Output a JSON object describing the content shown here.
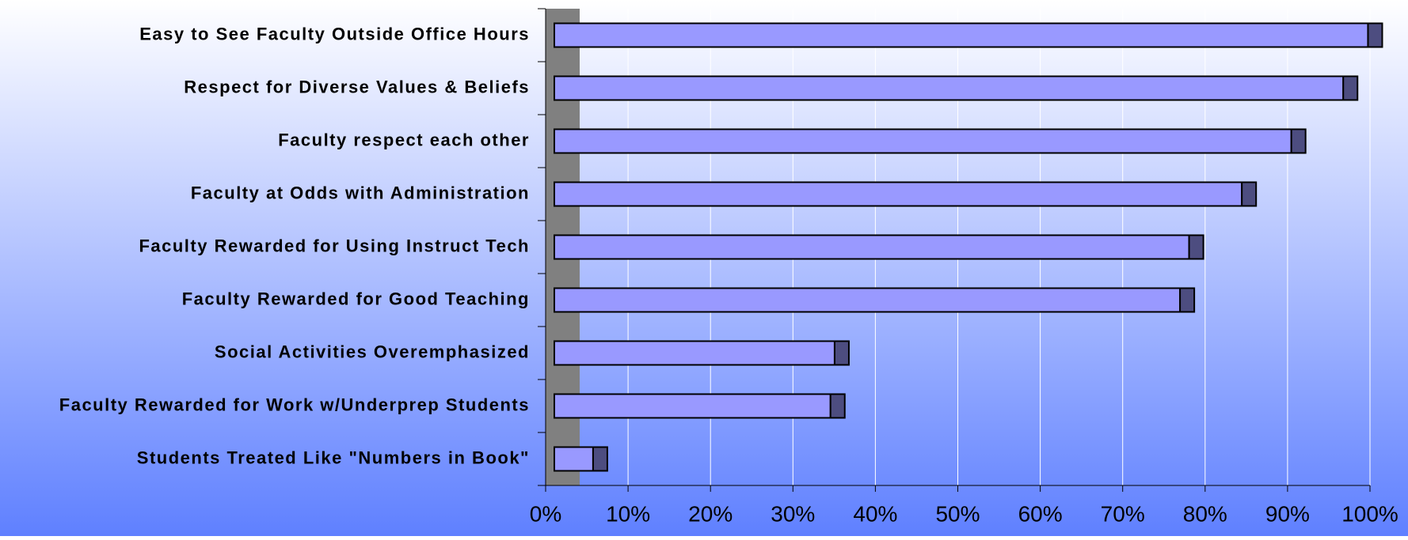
{
  "chart_data": {
    "type": "bar",
    "orientation": "horizontal",
    "categories": [
      "Easy to See Faculty Outside Office Hours",
      "Respect for Diverse Values & Beliefs",
      "Faculty respect each other",
      "Faculty at Odds with Administration",
      "Faculty Rewarded for Using Instruct Tech",
      "Faculty Rewarded for Good Teaching",
      "Social Activities Overemphasized",
      "Faculty Rewarded for Work w/Underprep Students",
      "Students Treated Like \"Numbers in Book\""
    ],
    "values": [
      98.7,
      95.7,
      89.4,
      83.4,
      77.0,
      75.9,
      34.0,
      33.5,
      4.7
    ],
    "color": "#9999ff",
    "xlim": [
      0,
      100
    ],
    "xticks": [
      {
        "value": 0,
        "label": "0%"
      },
      {
        "value": 10,
        "label": "10%"
      },
      {
        "value": 20,
        "label": "20%"
      },
      {
        "value": 30,
        "label": "30%"
      },
      {
        "value": 40,
        "label": "40%"
      },
      {
        "value": 50,
        "label": "50%"
      },
      {
        "value": 60,
        "label": "60%"
      },
      {
        "value": 70,
        "label": "70%"
      },
      {
        "value": 80,
        "label": "80%"
      },
      {
        "value": 90,
        "label": "90%"
      },
      {
        "value": 100,
        "label": "100%"
      }
    ],
    "grid": true
  }
}
